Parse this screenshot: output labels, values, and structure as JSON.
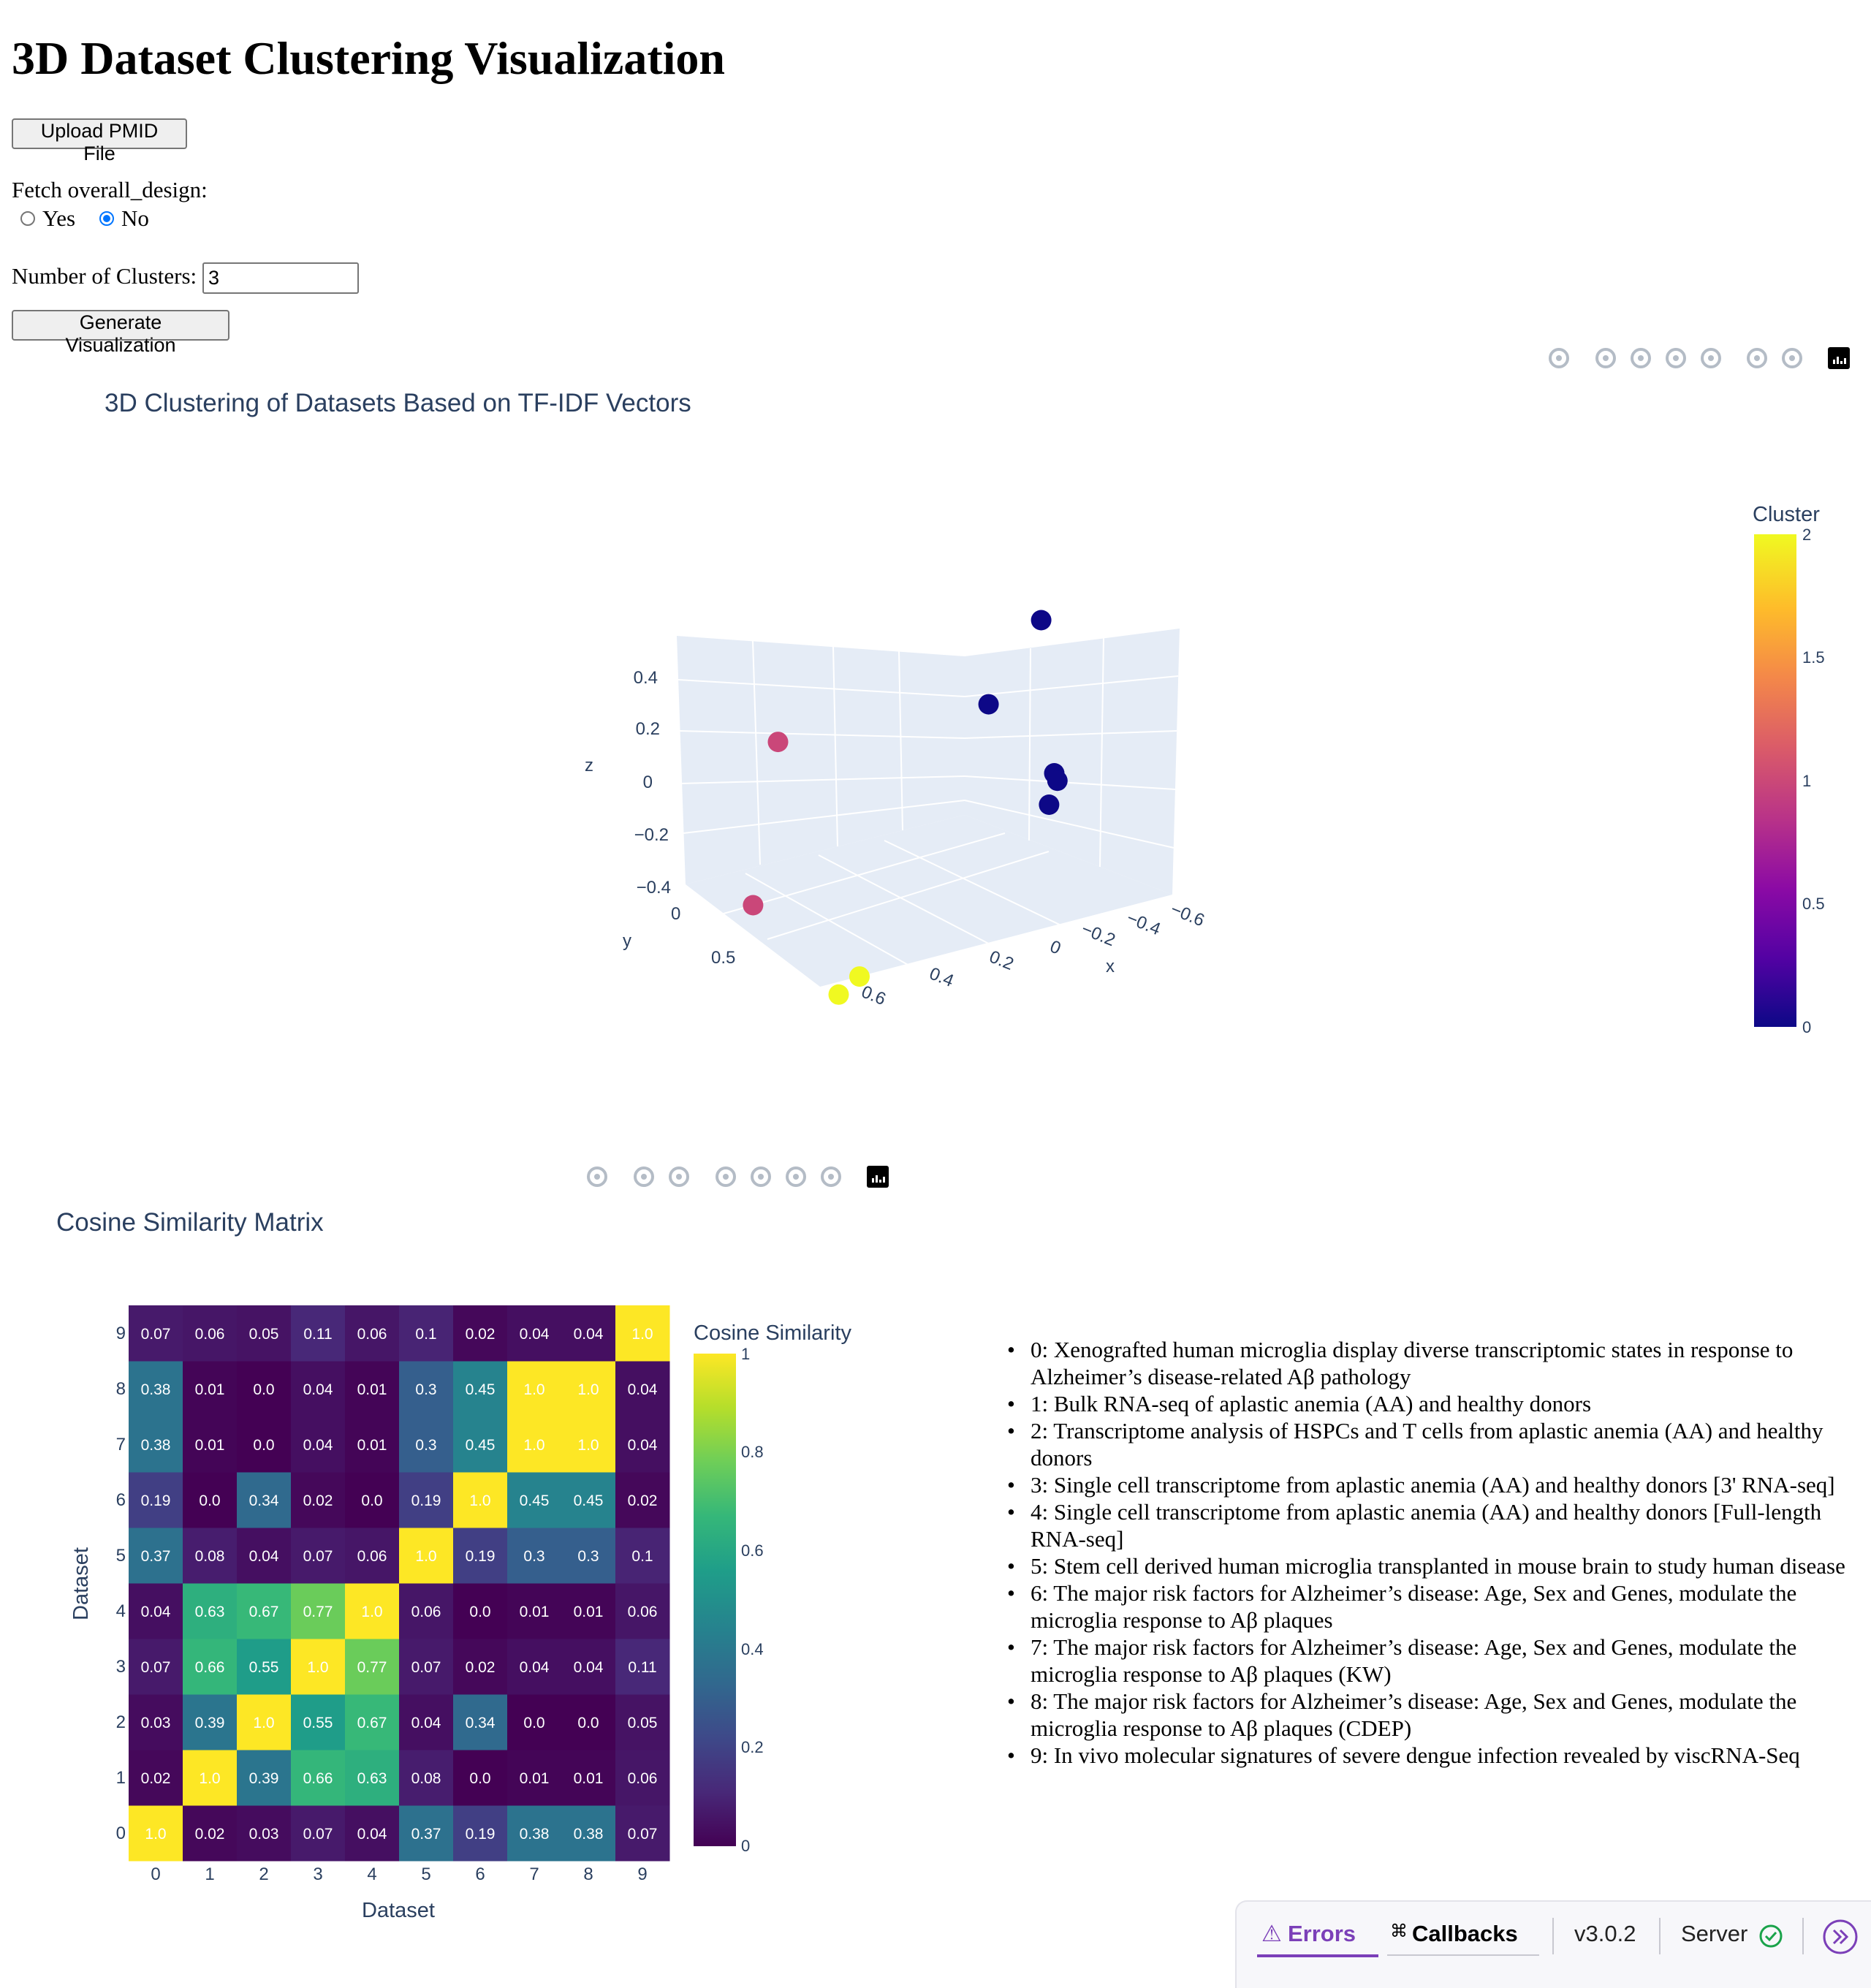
{
  "page": {
    "title": "3D Dataset Clustering Visualization",
    "upload_label": "Upload PMID File",
    "fetch_label": "Fetch overall_design:",
    "radio_options": [
      "Yes",
      "No"
    ],
    "radio_selected": "No",
    "clusters_label": "Number of Clusters:",
    "clusters_value": "3",
    "generate_label": "Generate Visualization"
  },
  "toolbar_3d_icons": [
    "camera-icon",
    "zoom-icon",
    "pan-icon",
    "orbit-rotate-icon",
    "turntable-icon",
    "home-icon",
    "reset-camera-icon",
    "plotly-logo-icon"
  ],
  "toolbar_2d_icons": [
    "camera-icon",
    "zoom-icon",
    "pan-icon",
    "zoom-in-icon",
    "zoom-out-icon",
    "autoscale-icon",
    "home-icon",
    "plotly-logo-icon"
  ],
  "chart_data": [
    {
      "type": "scatter",
      "title": "3D Clustering of Datasets Based on TF-IDF Vectors",
      "xlabel": "x",
      "ylabel": "y",
      "zlabel": "z",
      "x_ticks": [
        "−0.6",
        "−0.4",
        "−0.2",
        "0",
        "0.2",
        "0.4",
        "0.6"
      ],
      "y_ticks": [
        "0",
        "0.5"
      ],
      "z_ticks": [
        "0.4",
        "0.2",
        "0",
        "−0.2",
        "−0.4"
      ],
      "colorbar_title": "Cluster",
      "colorbar_ticks": [
        "2",
        "1.5",
        "1",
        "0.5",
        "0"
      ],
      "colorscale": [
        "#0d0887",
        "#5302a3",
        "#8b0aa5",
        "#b83289",
        "#db5c68",
        "#f48849",
        "#febc2a",
        "#f0f921"
      ],
      "points": [
        {
          "x": -0.18,
          "y": 0.02,
          "z": 0.52,
          "cluster": 0
        },
        {
          "x": -0.05,
          "y": 0.12,
          "z": 0.32,
          "cluster": 0
        },
        {
          "x": -0.22,
          "y": 0.05,
          "z": -0.06,
          "cluster": 0
        },
        {
          "x": -0.23,
          "y": 0.06,
          "z": -0.09,
          "cluster": 0
        },
        {
          "x": -0.21,
          "y": 0.08,
          "z": -0.16,
          "cluster": 0
        },
        {
          "x": 0.55,
          "y": -0.05,
          "z": 0.48,
          "cluster": 1
        },
        {
          "x": 0.6,
          "y": 0.08,
          "z": -0.05,
          "cluster": 1
        },
        {
          "x": 0.3,
          "y": 0.55,
          "z": -0.4,
          "cluster": 2
        },
        {
          "x": 0.25,
          "y": 0.5,
          "z": -0.38,
          "cluster": 2
        }
      ]
    },
    {
      "type": "heatmap",
      "title": "Cosine Similarity Matrix",
      "xlabel": "Dataset",
      "ylabel": "Dataset",
      "x_ticks": [
        "0",
        "1",
        "2",
        "3",
        "4",
        "5",
        "6",
        "7",
        "8",
        "9"
      ],
      "y_ticks": [
        "0",
        "1",
        "2",
        "3",
        "4",
        "5",
        "6",
        "7",
        "8",
        "9"
      ],
      "colorbar_title": "Cosine Similarity",
      "colorbar_ticks": [
        "1",
        "0.8",
        "0.6",
        "0.4",
        "0.2",
        "0"
      ],
      "colorscale": [
        "#440154",
        "#482878",
        "#3e4989",
        "#31688e",
        "#26828e",
        "#1f9e89",
        "#35b779",
        "#6ece58",
        "#b5de2b",
        "#fde725"
      ],
      "matrix": [
        [
          "1.0",
          "0.02",
          "0.03",
          "0.07",
          "0.04",
          "0.37",
          "0.19",
          "0.38",
          "0.38",
          "0.07"
        ],
        [
          "0.02",
          "1.0",
          "0.39",
          "0.66",
          "0.63",
          "0.08",
          "0.0",
          "0.01",
          "0.01",
          "0.06"
        ],
        [
          "0.03",
          "0.39",
          "1.0",
          "0.55",
          "0.67",
          "0.04",
          "0.34",
          "0.0",
          "0.0",
          "0.05"
        ],
        [
          "0.07",
          "0.66",
          "0.55",
          "1.0",
          "0.77",
          "0.07",
          "0.02",
          "0.04",
          "0.04",
          "0.11"
        ],
        [
          "0.04",
          "0.63",
          "0.67",
          "0.77",
          "1.0",
          "0.06",
          "0.0",
          "0.01",
          "0.01",
          "0.06"
        ],
        [
          "0.37",
          "0.08",
          "0.04",
          "0.07",
          "0.06",
          "1.0",
          "0.19",
          "0.3",
          "0.3",
          "0.1"
        ],
        [
          "0.19",
          "0.0",
          "0.34",
          "0.02",
          "0.0",
          "0.19",
          "1.0",
          "0.45",
          "0.45",
          "0.02"
        ],
        [
          "0.38",
          "0.01",
          "0.0",
          "0.04",
          "0.01",
          "0.3",
          "0.45",
          "1.0",
          "1.0",
          "0.04"
        ],
        [
          "0.38",
          "0.01",
          "0.0",
          "0.04",
          "0.01",
          "0.3",
          "0.45",
          "1.0",
          "1.0",
          "0.04"
        ],
        [
          "0.07",
          "0.06",
          "0.05",
          "0.11",
          "0.06",
          "0.1",
          "0.02",
          "0.04",
          "0.04",
          "1.0"
        ]
      ]
    }
  ],
  "datasets": [
    "0: Xenografted human microglia display diverse transcriptomic states in response to Alzheimer’s disease-related Aβ pathology",
    "1: Bulk RNA-seq of aplastic anemia (AA) and healthy donors",
    "2: Transcriptome analysis of HSPCs and T cells from aplastic anemia (AA) and healthy donors",
    "3: Single cell transcriptome from aplastic anemia (AA) and healthy donors [3' RNA-seq]",
    "4: Single cell transcriptome from aplastic anemia (AA) and healthy donors [Full-length RNA-seq]",
    "5: Stem cell derived human microglia transplanted in mouse brain to study human disease",
    "6: The major risk factors for Alzheimer’s disease: Age, Sex and Genes, modulate the microglia response to Aβ plaques",
    "7: The major risk factors for Alzheimer’s disease: Age, Sex and Genes, modulate the microglia response to Aβ plaques (KW)",
    "8: The major risk factors for Alzheimer’s disease: Age, Sex and Genes, modulate the microglia response to Aβ plaques (CDEP)",
    "9: In vivo molecular signatures of severe dengue infection revealed by viscRNA-Seq"
  ],
  "debug": {
    "errors_label": "Errors",
    "callbacks_label": "Callbacks",
    "version": "v3.0.2",
    "server_label": "Server",
    "accent": "#7b3fb8"
  }
}
